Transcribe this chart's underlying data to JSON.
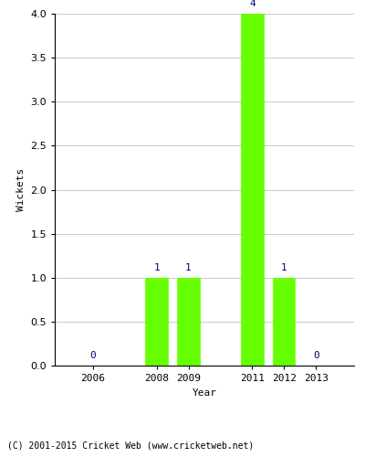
{
  "years": [
    2006,
    2008,
    2009,
    2011,
    2012,
    2013
  ],
  "wickets": [
    0,
    1,
    1,
    4,
    1,
    0
  ],
  "bar_color": "#66ff00",
  "bar_edge_color": "#66ff00",
  "label_color": "#000080",
  "xlabel": "Year",
  "ylabel": "Wickets",
  "ylim": [
    0,
    4.0
  ],
  "yticks": [
    0.0,
    0.5,
    1.0,
    1.5,
    2.0,
    2.5,
    3.0,
    3.5,
    4.0
  ],
  "footnote": "(C) 2001-2015 Cricket Web (www.cricketweb.net)",
  "background_color": "#ffffff",
  "grid_color": "#cccccc",
  "label_fontsize": 8,
  "axis_fontsize": 8,
  "bar_width": 0.7,
  "xlim": [
    2004.8,
    2014.2
  ]
}
